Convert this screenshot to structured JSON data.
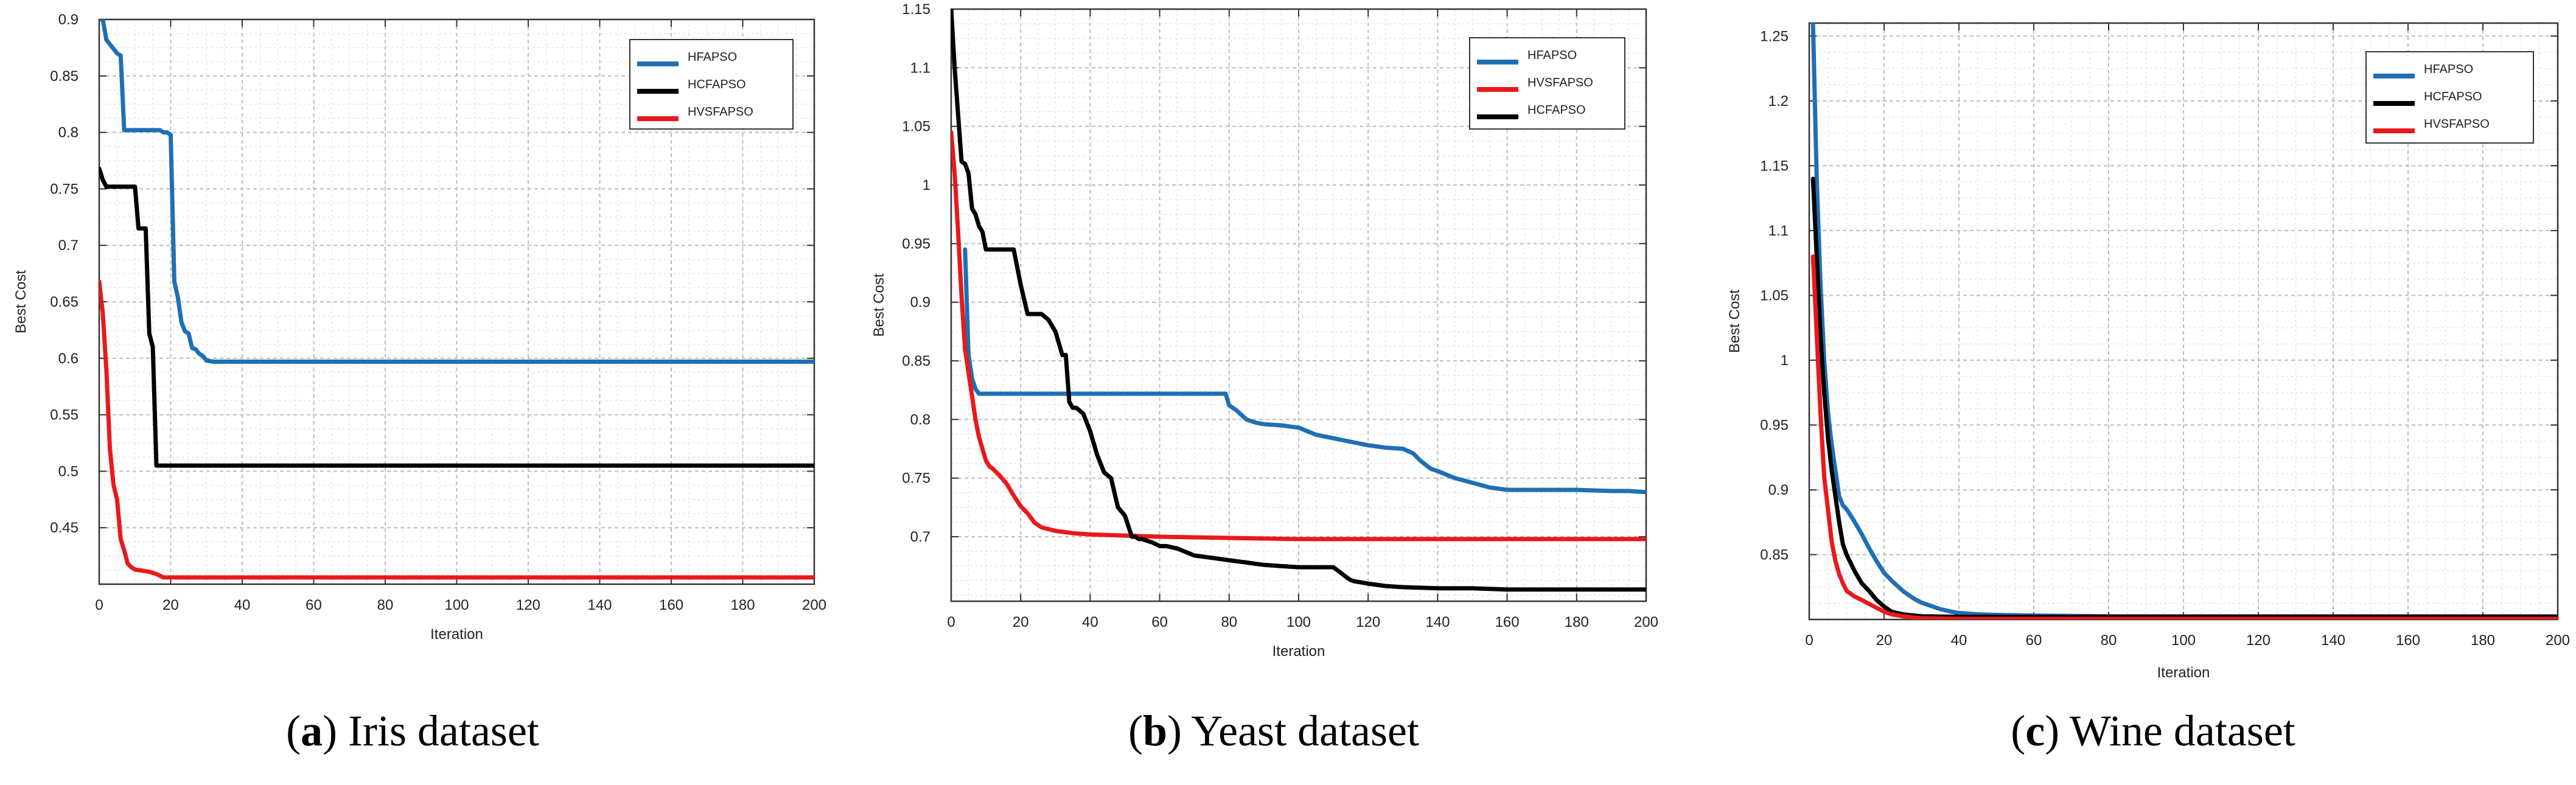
{
  "chart_data": [
    {
      "type": "line",
      "caption_prefix": "(",
      "caption_letter": "a",
      "caption_text": ") Iris dataset",
      "xlabel": "Iteration",
      "ylabel": "Best Cost",
      "xlim": [
        0,
        200
      ],
      "ylim": [
        0.4,
        0.9
      ],
      "xticks": [
        0,
        20,
        40,
        60,
        80,
        100,
        120,
        140,
        160,
        180,
        200
      ],
      "yticks": [
        0.45,
        0.5,
        0.55,
        0.6,
        0.65,
        0.7,
        0.75,
        0.8,
        0.85,
        0.9
      ],
      "ytick_labels": [
        "0.45",
        "0.5",
        "0.55",
        "0.6",
        "0.65",
        "0.7",
        "0.75",
        "0.8",
        "0.85",
        "0.9"
      ],
      "legend": [
        "HFAPSO",
        "HCFAPSO",
        "HVSFAPSO"
      ],
      "series": [
        {
          "name": "HFAPSO",
          "color": "#1f6fb4",
          "x": [
            0,
            1,
            2,
            3,
            4,
            5,
            6,
            7,
            8,
            10,
            12,
            14,
            16,
            17,
            18,
            19,
            20,
            21,
            22,
            23,
            24,
            25,
            26,
            27,
            28,
            29,
            30,
            32,
            35,
            40,
            60,
            100,
            150,
            200
          ],
          "y": [
            0.9,
            0.9,
            0.882,
            0.878,
            0.874,
            0.87,
            0.868,
            0.802,
            0.802,
            0.802,
            0.802,
            0.802,
            0.802,
            0.802,
            0.8,
            0.8,
            0.798,
            0.668,
            0.654,
            0.632,
            0.624,
            0.622,
            0.609,
            0.608,
            0.604,
            0.602,
            0.598,
            0.597,
            0.597,
            0.597,
            0.597,
            0.597,
            0.597,
            0.597
          ]
        },
        {
          "name": "HCFAPSO",
          "color": "#000000",
          "x": [
            0,
            1,
            2,
            3,
            5,
            8,
            10,
            11,
            12,
            13,
            14,
            15,
            16,
            17,
            18,
            40,
            80,
            120,
            160,
            200
          ],
          "y": [
            0.768,
            0.758,
            0.752,
            0.752,
            0.752,
            0.752,
            0.752,
            0.715,
            0.715,
            0.715,
            0.622,
            0.61,
            0.505,
            0.505,
            0.505,
            0.505,
            0.505,
            0.505,
            0.505,
            0.505
          ]
        },
        {
          "name": "HVSFAPSO",
          "color": "#e8191c",
          "x": [
            0,
            1,
            2,
            3,
            4,
            5,
            6,
            7,
            8,
            9,
            10,
            12,
            14,
            16,
            18,
            20,
            25,
            40,
            60,
            100,
            150,
            200
          ],
          "y": [
            0.668,
            0.64,
            0.59,
            0.52,
            0.488,
            0.475,
            0.44,
            0.43,
            0.418,
            0.415,
            0.413,
            0.412,
            0.411,
            0.409,
            0.406,
            0.406,
            0.406,
            0.406,
            0.406,
            0.406,
            0.406,
            0.406
          ]
        }
      ]
    },
    {
      "type": "line",
      "caption_prefix": "(",
      "caption_letter": "b",
      "caption_text": ") Yeast dataset",
      "xlabel": "Iteration",
      "ylabel": "Best Cost",
      "xlim": [
        0,
        200
      ],
      "ylim": [
        0.645,
        1.15
      ],
      "xticks": [
        0,
        20,
        40,
        60,
        80,
        100,
        120,
        140,
        160,
        180,
        200
      ],
      "yticks": [
        0.7,
        0.75,
        0.8,
        0.85,
        0.9,
        0.95,
        1.0,
        1.05,
        1.1,
        1.15
      ],
      "ytick_labels": [
        "0.7",
        "0.75",
        "0.8",
        "0.85",
        "0.9",
        "0.95",
        "1",
        "1.05",
        "1.1",
        "1.15"
      ],
      "legend": [
        "HFAPSO",
        "HVSFAPSO",
        "HCFAPSO"
      ],
      "series": [
        {
          "name": "HFAPSO",
          "color": "#1f6fb4",
          "x": [
            4,
            5,
            6,
            7,
            8,
            9,
            10,
            20,
            40,
            60,
            70,
            79,
            80,
            82,
            85,
            88,
            90,
            95,
            100,
            105,
            110,
            115,
            120,
            125,
            130,
            133,
            135,
            138,
            140,
            145,
            150,
            155,
            160,
            170,
            180,
            190,
            195,
            200
          ],
          "y": [
            0.945,
            0.855,
            0.835,
            0.826,
            0.822,
            0.822,
            0.822,
            0.822,
            0.822,
            0.822,
            0.822,
            0.822,
            0.812,
            0.808,
            0.8,
            0.797,
            0.796,
            0.795,
            0.793,
            0.787,
            0.784,
            0.781,
            0.778,
            0.776,
            0.775,
            0.771,
            0.765,
            0.758,
            0.756,
            0.75,
            0.746,
            0.742,
            0.74,
            0.74,
            0.74,
            0.739,
            0.739,
            0.738
          ]
        },
        {
          "name": "HVSFAPSO",
          "color": "#e8191c",
          "x": [
            0,
            1,
            2,
            3,
            4,
            5,
            6,
            7,
            8,
            9,
            10,
            11,
            12,
            14,
            16,
            18,
            20,
            22,
            24,
            26,
            30,
            35,
            40,
            50,
            60,
            80,
            100,
            130,
            160,
            200
          ],
          "y": [
            1.045,
            1.01,
            0.96,
            0.905,
            0.86,
            0.84,
            0.82,
            0.8,
            0.785,
            0.775,
            0.765,
            0.76,
            0.758,
            0.752,
            0.745,
            0.735,
            0.726,
            0.72,
            0.712,
            0.708,
            0.705,
            0.703,
            0.702,
            0.701,
            0.7,
            0.699,
            0.698,
            0.698,
            0.698,
            0.698
          ]
        },
        {
          "name": "HCFAPSO",
          "color": "#000000",
          "x": [
            0,
            1,
            2,
            3,
            4,
            5,
            6,
            7,
            8,
            9,
            10,
            12,
            14,
            18,
            20,
            22,
            24,
            26,
            28,
            30,
            32,
            33,
            34,
            35,
            36,
            38,
            40,
            42,
            44,
            46,
            48,
            50,
            52,
            53,
            54,
            55,
            58,
            60,
            62,
            65,
            70,
            75,
            80,
            85,
            90,
            95,
            100,
            105,
            110,
            114,
            115,
            116,
            120,
            125,
            130,
            140,
            150,
            160,
            180,
            200
          ],
          "y": [
            1.15,
            1.1,
            1.06,
            1.02,
            1.018,
            1.01,
            0.98,
            0.975,
            0.965,
            0.96,
            0.945,
            0.945,
            0.945,
            0.945,
            0.915,
            0.89,
            0.89,
            0.89,
            0.885,
            0.875,
            0.855,
            0.855,
            0.815,
            0.81,
            0.81,
            0.805,
            0.79,
            0.77,
            0.755,
            0.75,
            0.725,
            0.718,
            0.7,
            0.7,
            0.698,
            0.698,
            0.695,
            0.692,
            0.692,
            0.69,
            0.684,
            0.682,
            0.68,
            0.678,
            0.676,
            0.675,
            0.674,
            0.674,
            0.674,
            0.665,
            0.663,
            0.662,
            0.66,
            0.658,
            0.657,
            0.656,
            0.656,
            0.655,
            0.655,
            0.655
          ]
        }
      ]
    },
    {
      "type": "line",
      "caption_prefix": "(",
      "caption_letter": "c",
      "caption_text": ") Wine dataset",
      "xlabel": "Iteration",
      "ylabel": "Best Cost",
      "xlim": [
        0,
        200
      ],
      "ylim": [
        0.8,
        1.26
      ],
      "xticks": [
        0,
        20,
        40,
        60,
        80,
        100,
        120,
        140,
        160,
        180,
        200
      ],
      "yticks": [
        0.85,
        0.9,
        0.95,
        1.0,
        1.05,
        1.1,
        1.15,
        1.2,
        1.25
      ],
      "ytick_labels": [
        "0.85",
        "0.9",
        "0.95",
        "1",
        "1.05",
        "1.1",
        "1.15",
        "1.2",
        "1.25"
      ],
      "legend": [
        "HFAPSO",
        "HCFAPSO",
        "HVSFAPSO"
      ],
      "series": [
        {
          "name": "HFAPSO",
          "color": "#1f6fb4",
          "x": [
            1,
            2,
            3,
            4,
            5,
            6,
            7,
            8,
            9,
            10,
            12,
            14,
            16,
            18,
            20,
            22,
            25,
            28,
            30,
            32,
            35,
            38,
            40,
            45,
            50,
            60,
            80,
            100,
            150,
            200
          ],
          "y": [
            1.26,
            1.14,
            1.06,
            1.0,
            0.96,
            0.935,
            0.915,
            0.895,
            0.888,
            0.885,
            0.876,
            0.866,
            0.855,
            0.845,
            0.836,
            0.83,
            0.822,
            0.816,
            0.813,
            0.811,
            0.808,
            0.806,
            0.805,
            0.804,
            0.8035,
            0.803,
            0.8025,
            0.8025,
            0.8025,
            0.8025
          ]
        },
        {
          "name": "HCFAPSO",
          "color": "#000000",
          "x": [
            1,
            2,
            3,
            4,
            5,
            6,
            7,
            8,
            9,
            10,
            12,
            14,
            16,
            18,
            20,
            22,
            25,
            28,
            30,
            35,
            40,
            50,
            80,
            120,
            160,
            200
          ],
          "y": [
            1.14,
            1.08,
            1.02,
            0.975,
            0.94,
            0.915,
            0.895,
            0.875,
            0.858,
            0.85,
            0.838,
            0.828,
            0.822,
            0.815,
            0.81,
            0.806,
            0.804,
            0.803,
            0.8025,
            0.8022,
            0.8021,
            0.802,
            0.802,
            0.802,
            0.802,
            0.802
          ]
        },
        {
          "name": "HVSFAPSO",
          "color": "#e8191c",
          "x": [
            1,
            2,
            3,
            4,
            5,
            6,
            7,
            8,
            9,
            10,
            12,
            14,
            16,
            18,
            20,
            22,
            25,
            28,
            30,
            35,
            40,
            50,
            80,
            120,
            160,
            200
          ],
          "y": [
            1.08,
            1.02,
            0.96,
            0.91,
            0.885,
            0.86,
            0.845,
            0.835,
            0.828,
            0.822,
            0.818,
            0.815,
            0.812,
            0.809,
            0.806,
            0.804,
            0.8025,
            0.8015,
            0.801,
            0.8007,
            0.8005,
            0.8005,
            0.8005,
            0.8005,
            0.8005,
            0.8005
          ]
        }
      ]
    }
  ]
}
